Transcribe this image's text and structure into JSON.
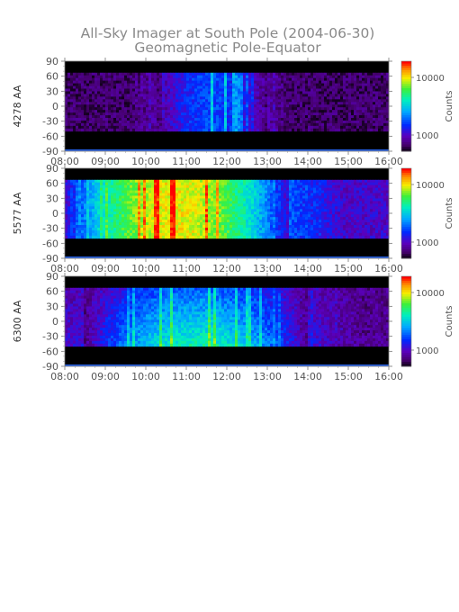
{
  "title": "All-Sky Imager at South Pole (2004-06-30)",
  "subtitle": "Geomagnetic Pole-Equator",
  "chart_data": [
    {
      "type": "heatmap",
      "ylabel": "4278 AA",
      "colorbar_label": "Counts",
      "colorbar_ticks": [
        "10000",
        "1000"
      ],
      "colorbar_scale": "log",
      "x_tick_labels": [
        "08:00",
        "09:00",
        "10:00",
        "11:00",
        "12:00",
        "13:00",
        "14:00",
        "15:00",
        "16:00"
      ],
      "y_tick_labels": [
        "90",
        "60",
        "30",
        "0",
        "-30",
        "-60",
        "-90"
      ],
      "xlim": [
        "08:00",
        "16:00"
      ],
      "ylim": [
        -90,
        90
      ],
      "valid_lat_range": [
        -50,
        67
      ],
      "activity_window": [
        "10:15",
        "13:00"
      ],
      "activity_level": 0.25,
      "background_level": 0.08
    },
    {
      "type": "heatmap",
      "ylabel": "5577 AA",
      "colorbar_label": "Counts",
      "colorbar_ticks": [
        "10000",
        "1000"
      ],
      "colorbar_scale": "log",
      "x_tick_labels": [
        "08:00",
        "09:00",
        "10:00",
        "11:00",
        "12:00",
        "13:00",
        "14:00",
        "15:00",
        "16:00"
      ],
      "y_tick_labels": [
        "90",
        "60",
        "30",
        "0",
        "-30",
        "-60",
        "-90"
      ],
      "xlim": [
        "08:00",
        "16:00"
      ],
      "ylim": [
        -90,
        90
      ],
      "valid_lat_range": [
        -50,
        67
      ],
      "activity_window": [
        "08:00",
        "13:30"
      ],
      "activity_level": 0.62,
      "background_level": 0.2
    },
    {
      "type": "heatmap",
      "ylabel": "6300 AA",
      "colorbar_label": "Counts",
      "colorbar_ticks": [
        "10000",
        "1000"
      ],
      "colorbar_scale": "log",
      "x_tick_labels": [
        "08:00",
        "09:00",
        "10:00",
        "11:00",
        "12:00",
        "13:00",
        "14:00",
        "15:00",
        "16:00"
      ],
      "y_tick_labels": [
        "90",
        "60",
        "30",
        "0",
        "-30",
        "-60",
        "-90"
      ],
      "xlim": [
        "08:00",
        "16:00"
      ],
      "ylim": [
        -90,
        90
      ],
      "valid_lat_range": [
        -50,
        67
      ],
      "activity_window": [
        "08:30",
        "14:00"
      ],
      "activity_level": 0.48,
      "background_level": 0.12
    }
  ]
}
